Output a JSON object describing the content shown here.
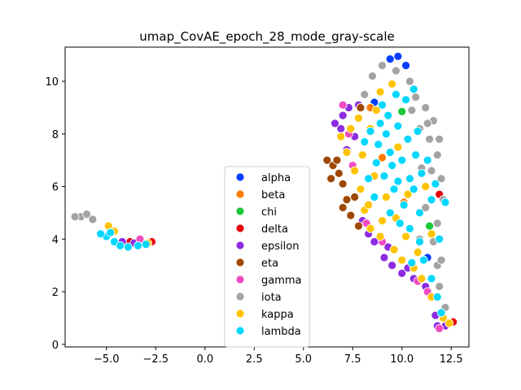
{
  "chart_data": {
    "type": "scatter",
    "title": "umap_CovAE_epoch_28_mode_gray-scale",
    "xlabel": "",
    "ylabel": "",
    "xlim": [
      -7.1,
      13.4
    ],
    "ylim": [
      -0.1,
      11.3
    ],
    "x_ticks": [
      -5.0,
      -2.5,
      0.0,
      2.5,
      5.0,
      7.5,
      10.0,
      12.5
    ],
    "x_tick_labels": [
      "−5.0",
      "−2.5",
      "0.0",
      "2.5",
      "5.0",
      "7.5",
      "10.0",
      "12.5"
    ],
    "y_ticks": [
      0,
      2,
      4,
      6,
      8,
      10
    ],
    "y_tick_labels": [
      "0",
      "2",
      "4",
      "6",
      "8",
      "10"
    ],
    "grid": false,
    "legend_position": "lower-center",
    "series": [
      {
        "name": "alpha",
        "color": "#023eff",
        "points": [
          [
            9.4,
            10.85
          ],
          [
            9.8,
            10.95
          ],
          [
            10.2,
            10.6
          ],
          [
            11.3,
            3.3
          ],
          [
            8.6,
            9.2
          ]
        ]
      },
      {
        "name": "beta",
        "color": "#ff7c00",
        "points": [
          [
            9.0,
            7.1
          ],
          [
            10.1,
            5.4
          ],
          [
            8.4,
            9.0
          ]
        ]
      },
      {
        "name": "chi",
        "color": "#1ac938",
        "points": [
          [
            10.0,
            8.85
          ],
          [
            11.4,
            4.5
          ]
        ]
      },
      {
        "name": "delta",
        "color": "#e8000b",
        "points": [
          [
            12.6,
            0.85
          ],
          [
            -2.7,
            3.9
          ],
          [
            11.9,
            5.7
          ],
          [
            -3.8,
            3.9
          ]
        ]
      },
      {
        "name": "epsilon",
        "color": "#8b2be2",
        "points": [
          [
            7.3,
            9.0
          ],
          [
            7.0,
            8.7
          ],
          [
            6.9,
            8.2
          ],
          [
            7.2,
            7.4
          ],
          [
            6.6,
            8.4
          ],
          [
            8.3,
            4.2
          ],
          [
            8.6,
            3.9
          ],
          [
            9.1,
            3.3
          ],
          [
            9.5,
            3.0
          ],
          [
            10.0,
            2.7
          ],
          [
            10.6,
            2.5
          ],
          [
            11.2,
            2.2
          ],
          [
            11.8,
            0.7
          ],
          [
            12.2,
            0.7
          ],
          [
            -4.2,
            3.9
          ],
          [
            -3.6,
            3.85
          ],
          [
            7.8,
            9.1
          ],
          [
            8.0,
            4.7
          ],
          [
            9.3,
            3.7
          ],
          [
            10.3,
            2.9
          ],
          [
            11.7,
            1.1
          ],
          [
            7.6,
            7.9
          ]
        ]
      },
      {
        "name": "eta",
        "color": "#9f4800",
        "points": [
          [
            6.2,
            7.0
          ],
          [
            6.5,
            6.8
          ],
          [
            6.8,
            6.5
          ],
          [
            7.0,
            6.1
          ],
          [
            6.7,
            7.0
          ],
          [
            7.2,
            5.5
          ],
          [
            7.4,
            4.9
          ],
          [
            7.8,
            4.5
          ],
          [
            7.0,
            5.2
          ],
          [
            7.9,
            9.0
          ],
          [
            6.4,
            6.3
          ],
          [
            7.6,
            5.6
          ]
        ]
      },
      {
        "name": "gamma",
        "color": "#f14cc1",
        "points": [
          [
            7.5,
            6.8
          ],
          [
            8.2,
            4.6
          ],
          [
            11.3,
            2.0
          ],
          [
            -3.3,
            4.0
          ],
          [
            7.0,
            9.1
          ],
          [
            10.8,
            2.4
          ],
          [
            11.9,
            0.6
          ],
          [
            9.0,
            3.9
          ],
          [
            7.3,
            8.0
          ]
        ]
      },
      {
        "name": "iota",
        "color": "#a3a3a3",
        "points": [
          [
            -6.3,
            4.85
          ],
          [
            -6.0,
            4.95
          ],
          [
            -5.7,
            4.75
          ],
          [
            -6.6,
            4.85
          ],
          [
            8.5,
            10.2
          ],
          [
            9.0,
            10.6
          ],
          [
            9.7,
            10.4
          ],
          [
            10.4,
            10.0
          ],
          [
            10.7,
            9.4
          ],
          [
            11.2,
            9.0
          ],
          [
            11.6,
            8.5
          ],
          [
            11.9,
            7.8
          ],
          [
            11.8,
            7.2
          ],
          [
            11.5,
            6.6
          ],
          [
            12.0,
            6.3
          ],
          [
            12.1,
            5.5
          ],
          [
            11.8,
            4.6
          ],
          [
            11.6,
            3.9
          ],
          [
            11.8,
            3.0
          ],
          [
            11.9,
            2.2
          ],
          [
            12.2,
            1.4
          ],
          [
            10.9,
            8.2
          ],
          [
            11.4,
            7.8
          ],
          [
            10.5,
            8.9
          ],
          [
            8.1,
            9.5
          ],
          [
            11.0,
            6.7
          ],
          [
            11.2,
            5.2
          ],
          [
            10.9,
            4.0
          ],
          [
            12.0,
            3.2
          ],
          [
            11.3,
            8.4
          ]
        ]
      },
      {
        "name": "kappa",
        "color": "#ffc400",
        "points": [
          [
            6.9,
            7.9
          ],
          [
            7.2,
            7.3
          ],
          [
            7.6,
            6.6
          ],
          [
            7.9,
            5.9
          ],
          [
            8.1,
            5.1
          ],
          [
            8.4,
            4.4
          ],
          [
            8.9,
            4.1
          ],
          [
            9.6,
            3.6
          ],
          [
            10.0,
            3.2
          ],
          [
            10.6,
            2.9
          ],
          [
            11.0,
            2.5
          ],
          [
            11.5,
            1.8
          ],
          [
            12.1,
            1.0
          ],
          [
            12.4,
            0.8
          ],
          [
            7.8,
            8.6
          ],
          [
            8.4,
            8.2
          ],
          [
            8.0,
            7.2
          ],
          [
            8.6,
            6.4
          ],
          [
            9.2,
            5.6
          ],
          [
            9.7,
            4.8
          ],
          [
            10.2,
            4.1
          ],
          [
            8.9,
            9.6
          ],
          [
            9.5,
            9.9
          ],
          [
            10.3,
            5.7
          ],
          [
            -4.9,
            4.5
          ],
          [
            -4.6,
            4.3
          ],
          [
            -2.9,
            3.85
          ],
          [
            7.4,
            8.2
          ],
          [
            8.3,
            5.3
          ],
          [
            9.0,
            4.7
          ],
          [
            10.8,
            3.5
          ],
          [
            11.2,
            6.0
          ],
          [
            9.8,
            7.5
          ],
          [
            8.7,
            8.9
          ],
          [
            11.5,
            4.2
          ]
        ]
      },
      {
        "name": "lambda",
        "color": "#00d7ff",
        "points": [
          [
            8.4,
            8.1
          ],
          [
            8.9,
            8.4
          ],
          [
            9.3,
            8.7
          ],
          [
            9.8,
            8.3
          ],
          [
            10.3,
            7.8
          ],
          [
            10.7,
            7.2
          ],
          [
            11.0,
            6.5
          ],
          [
            10.6,
            5.9
          ],
          [
            10.1,
            5.3
          ],
          [
            9.6,
            5.9
          ],
          [
            9.1,
            6.4
          ],
          [
            8.7,
            6.9
          ],
          [
            8.8,
            7.6
          ],
          [
            9.4,
            7.3
          ],
          [
            10.0,
            7.0
          ],
          [
            10.4,
            6.3
          ],
          [
            9.0,
            9.1
          ],
          [
            9.7,
            9.5
          ],
          [
            10.2,
            9.3
          ],
          [
            9.4,
            5.0
          ],
          [
            10.4,
            4.4
          ],
          [
            10.9,
            3.9
          ],
          [
            11.1,
            3.2
          ],
          [
            11.5,
            2.5
          ],
          [
            11.8,
            1.8
          ],
          [
            12.0,
            1.2
          ],
          [
            8.1,
            7.7
          ],
          [
            9.5,
            6.8
          ],
          [
            10.8,
            8.1
          ],
          [
            11.3,
            7.0
          ],
          [
            11.7,
            6.1
          ],
          [
            12.2,
            5.4
          ],
          [
            11.5,
            5.5
          ],
          [
            -5.0,
            4.1
          ],
          [
            -4.6,
            3.9
          ],
          [
            -4.3,
            3.75
          ],
          [
            -3.9,
            3.7
          ],
          [
            -3.4,
            3.75
          ],
          [
            -3.0,
            3.8
          ],
          [
            -5.3,
            4.2
          ],
          [
            -4.8,
            4.25
          ],
          [
            8.6,
            5.6
          ],
          [
            9.9,
            4.6
          ],
          [
            10.5,
            3.1
          ],
          [
            9.2,
            8.0
          ],
          [
            9.8,
            6.2
          ],
          [
            10.9,
            5.0
          ],
          [
            11.9,
            4.0
          ],
          [
            8.3,
            6.3
          ],
          [
            10.6,
            9.7
          ]
        ]
      }
    ]
  }
}
